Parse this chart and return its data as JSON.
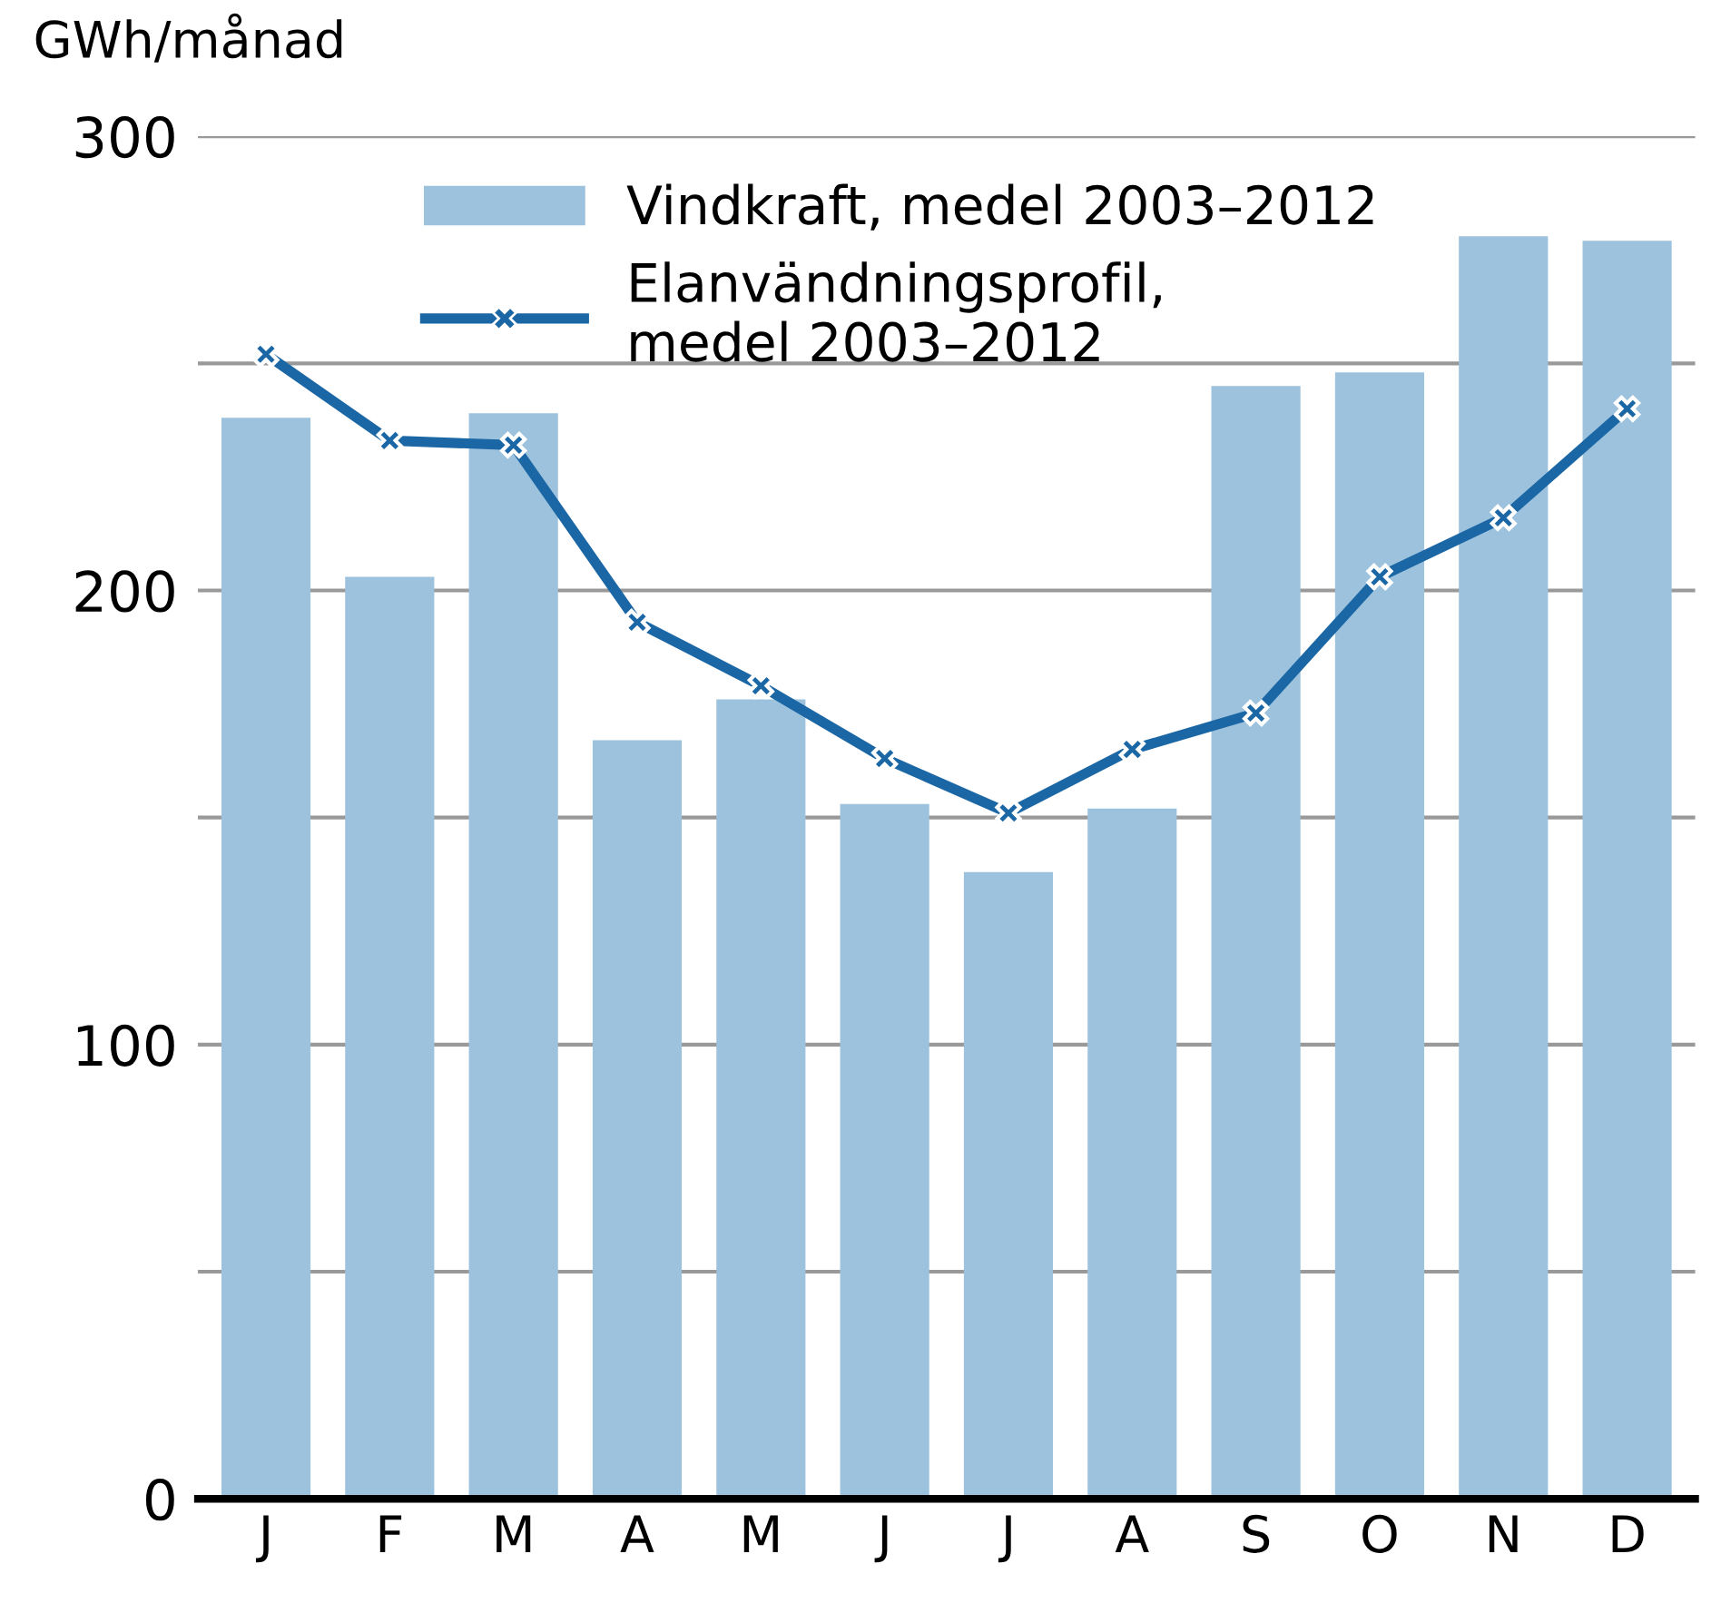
{
  "chart_data": {
    "type": "bar",
    "ylabel": "GWh/månad",
    "categories": [
      "J",
      "F",
      "M",
      "A",
      "M",
      "J",
      "J",
      "A",
      "S",
      "O",
      "N",
      "D"
    ],
    "series": [
      {
        "name": "Vindkraft, medel 2003–2012",
        "color": "#9cc2dd",
        "values": [
          238,
          203,
          239,
          167,
          176,
          153,
          138,
          152,
          245,
          248,
          278,
          277
        ]
      },
      {
        "name": "Elanvändningsprofil,\nmedel 2003–2012",
        "type": "line",
        "color": "#1b67a5",
        "marker": "cross",
        "line_style": "solid",
        "values": [
          252,
          233,
          232,
          193,
          179,
          163,
          151,
          165,
          173,
          203,
          216,
          240
        ]
      }
    ],
    "ylim": [
      0,
      300
    ],
    "yticks": [
      0,
      {
        "value": 50,
        "label": null
      },
      100,
      {
        "value": 150,
        "label": null
      },
      200,
      {
        "value": 250,
        "label": null
      },
      300
    ],
    "grid": "y",
    "legend": "top"
  }
}
